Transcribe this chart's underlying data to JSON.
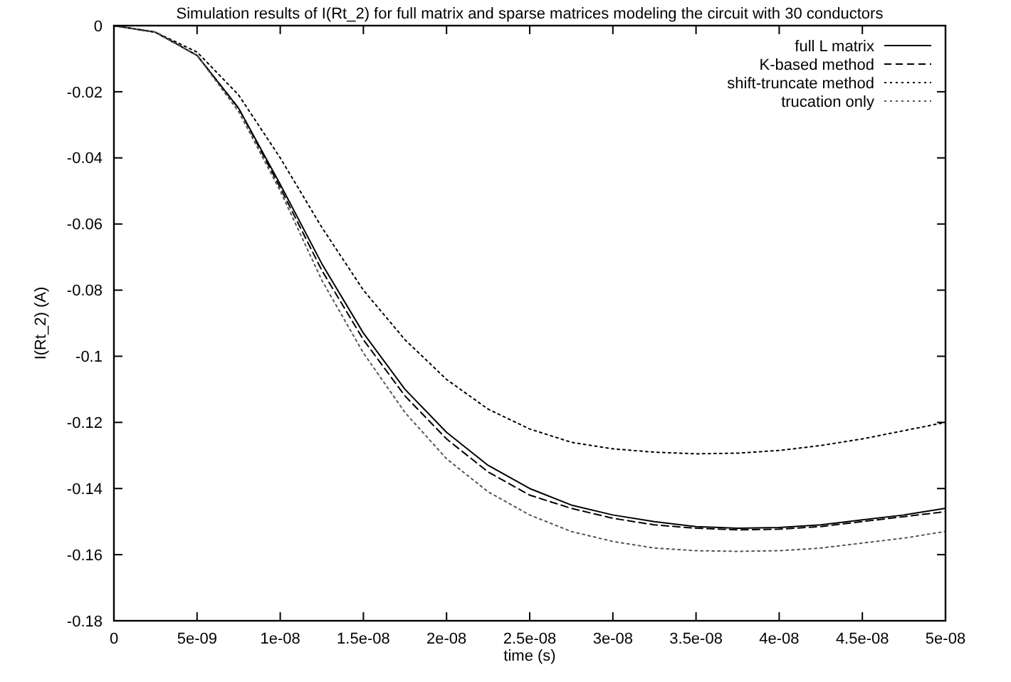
{
  "chart_data": {
    "type": "line",
    "title": "Simulation results of I(Rt_2) for full matrix and sparse matrices modeling the circuit with 30 conductors",
    "xlabel": "time (s)",
    "ylabel": "I(Rt_2) (A)",
    "x": [
      0,
      2.5e-09,
      5e-09,
      7.5e-09,
      1e-08,
      1.25e-08,
      1.5e-08,
      1.75e-08,
      2e-08,
      2.25e-08,
      2.5e-08,
      2.75e-08,
      3e-08,
      3.25e-08,
      3.5e-08,
      3.75e-08,
      4e-08,
      4.25e-08,
      4.5e-08,
      4.75e-08,
      5e-08
    ],
    "series": [
      {
        "name": "full L matrix",
        "color": "#000000",
        "line_style": "solid",
        "values": [
          0,
          -0.002,
          -0.009,
          -0.025,
          -0.048,
          -0.072,
          -0.093,
          -0.11,
          -0.123,
          -0.133,
          -0.14,
          -0.145,
          -0.148,
          -0.15,
          -0.1515,
          -0.152,
          -0.1518,
          -0.151,
          -0.1495,
          -0.148,
          -0.146
        ]
      },
      {
        "name": "K-based method",
        "color": "#000000",
        "line_style": "dashed",
        "values": [
          0,
          -0.002,
          -0.009,
          -0.025,
          -0.049,
          -0.074,
          -0.095,
          -0.112,
          -0.125,
          -0.135,
          -0.142,
          -0.146,
          -0.149,
          -0.151,
          -0.152,
          -0.1525,
          -0.1523,
          -0.1515,
          -0.15,
          -0.1485,
          -0.147
        ]
      },
      {
        "name": "shift-truncate method",
        "color": "#000000",
        "line_style": "dotted",
        "values": [
          0,
          -0.002,
          -0.008,
          -0.021,
          -0.04,
          -0.061,
          -0.08,
          -0.095,
          -0.107,
          -0.116,
          -0.122,
          -0.126,
          -0.128,
          -0.129,
          -0.1295,
          -0.1293,
          -0.1285,
          -0.127,
          -0.125,
          -0.1225,
          -0.12
        ]
      },
      {
        "name": "trucation only",
        "color": "#555555",
        "line_style": "dotted",
        "values": [
          0,
          -0.002,
          -0.009,
          -0.026,
          -0.05,
          -0.077,
          -0.099,
          -0.117,
          -0.131,
          -0.141,
          -0.148,
          -0.153,
          -0.156,
          -0.158,
          -0.1588,
          -0.159,
          -0.1588,
          -0.158,
          -0.1565,
          -0.155,
          -0.153
        ]
      }
    ],
    "xlim": [
      0,
      5e-08
    ],
    "xticks": [
      0,
      {
        "value": 5e-09,
        "label": "5e-09"
      },
      {
        "value": 1e-08,
        "label": "1e-08"
      },
      {
        "value": 1.5e-08,
        "label": "1.5e-08"
      },
      {
        "value": 2e-08,
        "label": "2e-08"
      },
      {
        "value": 2.5e-08,
        "label": "2.5e-08"
      },
      {
        "value": 3e-08,
        "label": "3e-08"
      },
      {
        "value": 3.5e-08,
        "label": "3.5e-08"
      },
      {
        "value": 4e-08,
        "label": "4e-08"
      },
      {
        "value": 4.5e-08,
        "label": "4.5e-08"
      },
      {
        "value": 5e-08,
        "label": "5e-08"
      }
    ],
    "ylim": [
      -0.18,
      0
    ],
    "yticks": [
      0,
      -0.02,
      -0.04,
      -0.06,
      -0.08,
      -0.1,
      -0.12,
      -0.14,
      -0.16,
      -0.18
    ],
    "grid": false,
    "legend": "top right",
    "marker": "none"
  }
}
